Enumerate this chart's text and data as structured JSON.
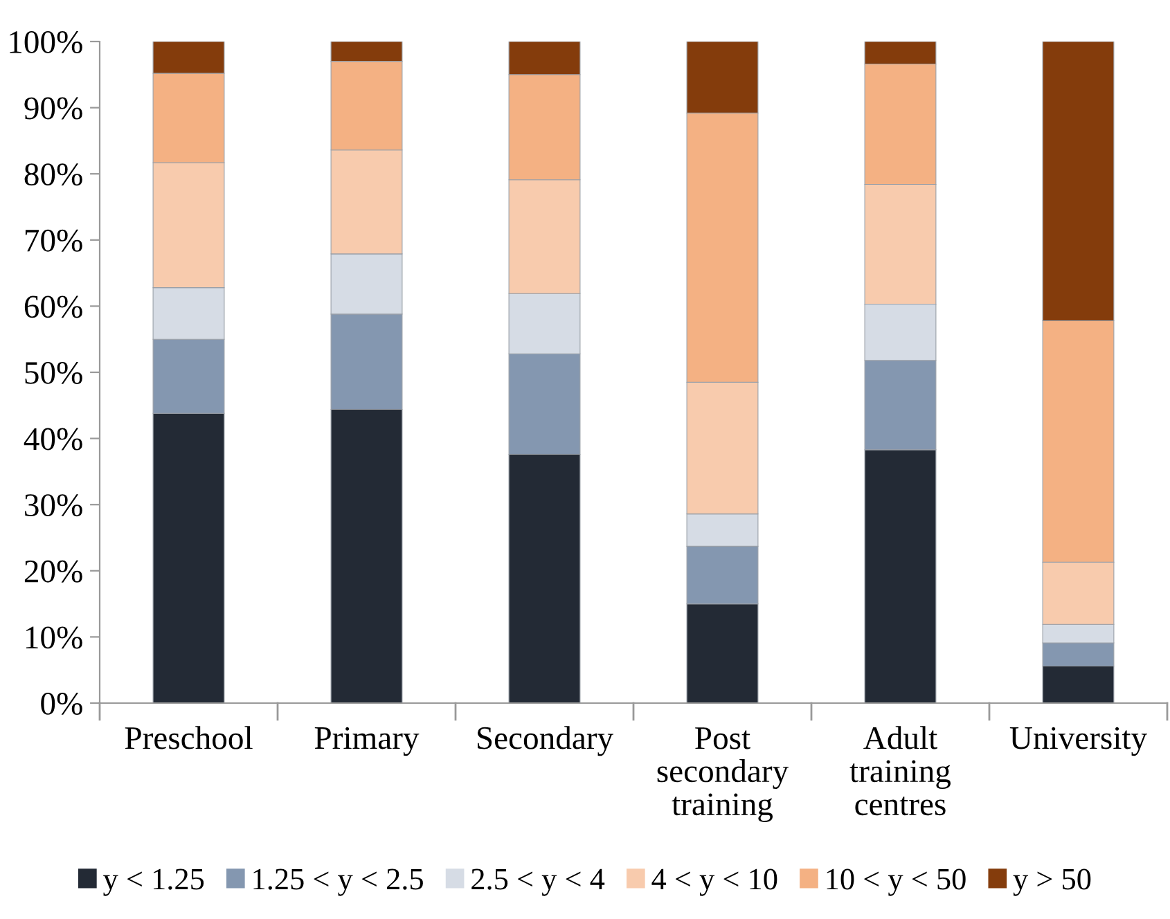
{
  "chart_data": {
    "type": "bar",
    "stacked": true,
    "categories": [
      "Preschool",
      "Primary",
      "Secondary",
      "Post\nsecondary\ntraining",
      "Adult\ntraining\ncentres",
      "University"
    ],
    "series": [
      {
        "name": "y < 1.25",
        "color": "#232a35",
        "values": [
          43.8,
          44.4,
          37.6,
          15.0,
          38.3,
          5.6
        ]
      },
      {
        "name": "1.25 < y < 2.5",
        "color": "#8497b0",
        "values": [
          11.2,
          14.4,
          15.2,
          8.7,
          13.5,
          3.5
        ]
      },
      {
        "name": "2.5 < y < 4",
        "color": "#d6dce5",
        "values": [
          7.8,
          9.1,
          9.1,
          4.9,
          8.5,
          2.8
        ]
      },
      {
        "name": "4 < y < 10",
        "color": "#f8cbad",
        "values": [
          18.9,
          15.7,
          17.2,
          19.9,
          18.1,
          9.4
        ]
      },
      {
        "name": "10 < y < 50",
        "color": "#f4b183",
        "values": [
          13.5,
          13.4,
          15.9,
          40.7,
          18.2,
          36.5
        ]
      },
      {
        "name": "y > 50",
        "color": "#843c0c",
        "values": [
          4.8,
          3.0,
          5.0,
          10.8,
          3.4,
          42.2
        ]
      }
    ],
    "ylim": [
      0,
      100
    ],
    "yticks": [
      {
        "value": 0,
        "label": "0%"
      },
      {
        "value": 10,
        "label": "10%"
      },
      {
        "value": 20,
        "label": "20%"
      },
      {
        "value": 30,
        "label": "30%"
      },
      {
        "value": 40,
        "label": "40%"
      },
      {
        "value": 50,
        "label": "50%"
      },
      {
        "value": 60,
        "label": "60%"
      },
      {
        "value": 70,
        "label": "70%"
      },
      {
        "value": 80,
        "label": "80%"
      },
      {
        "value": 90,
        "label": "90%"
      },
      {
        "value": 100,
        "label": "100%"
      }
    ],
    "legend": "bottom"
  }
}
